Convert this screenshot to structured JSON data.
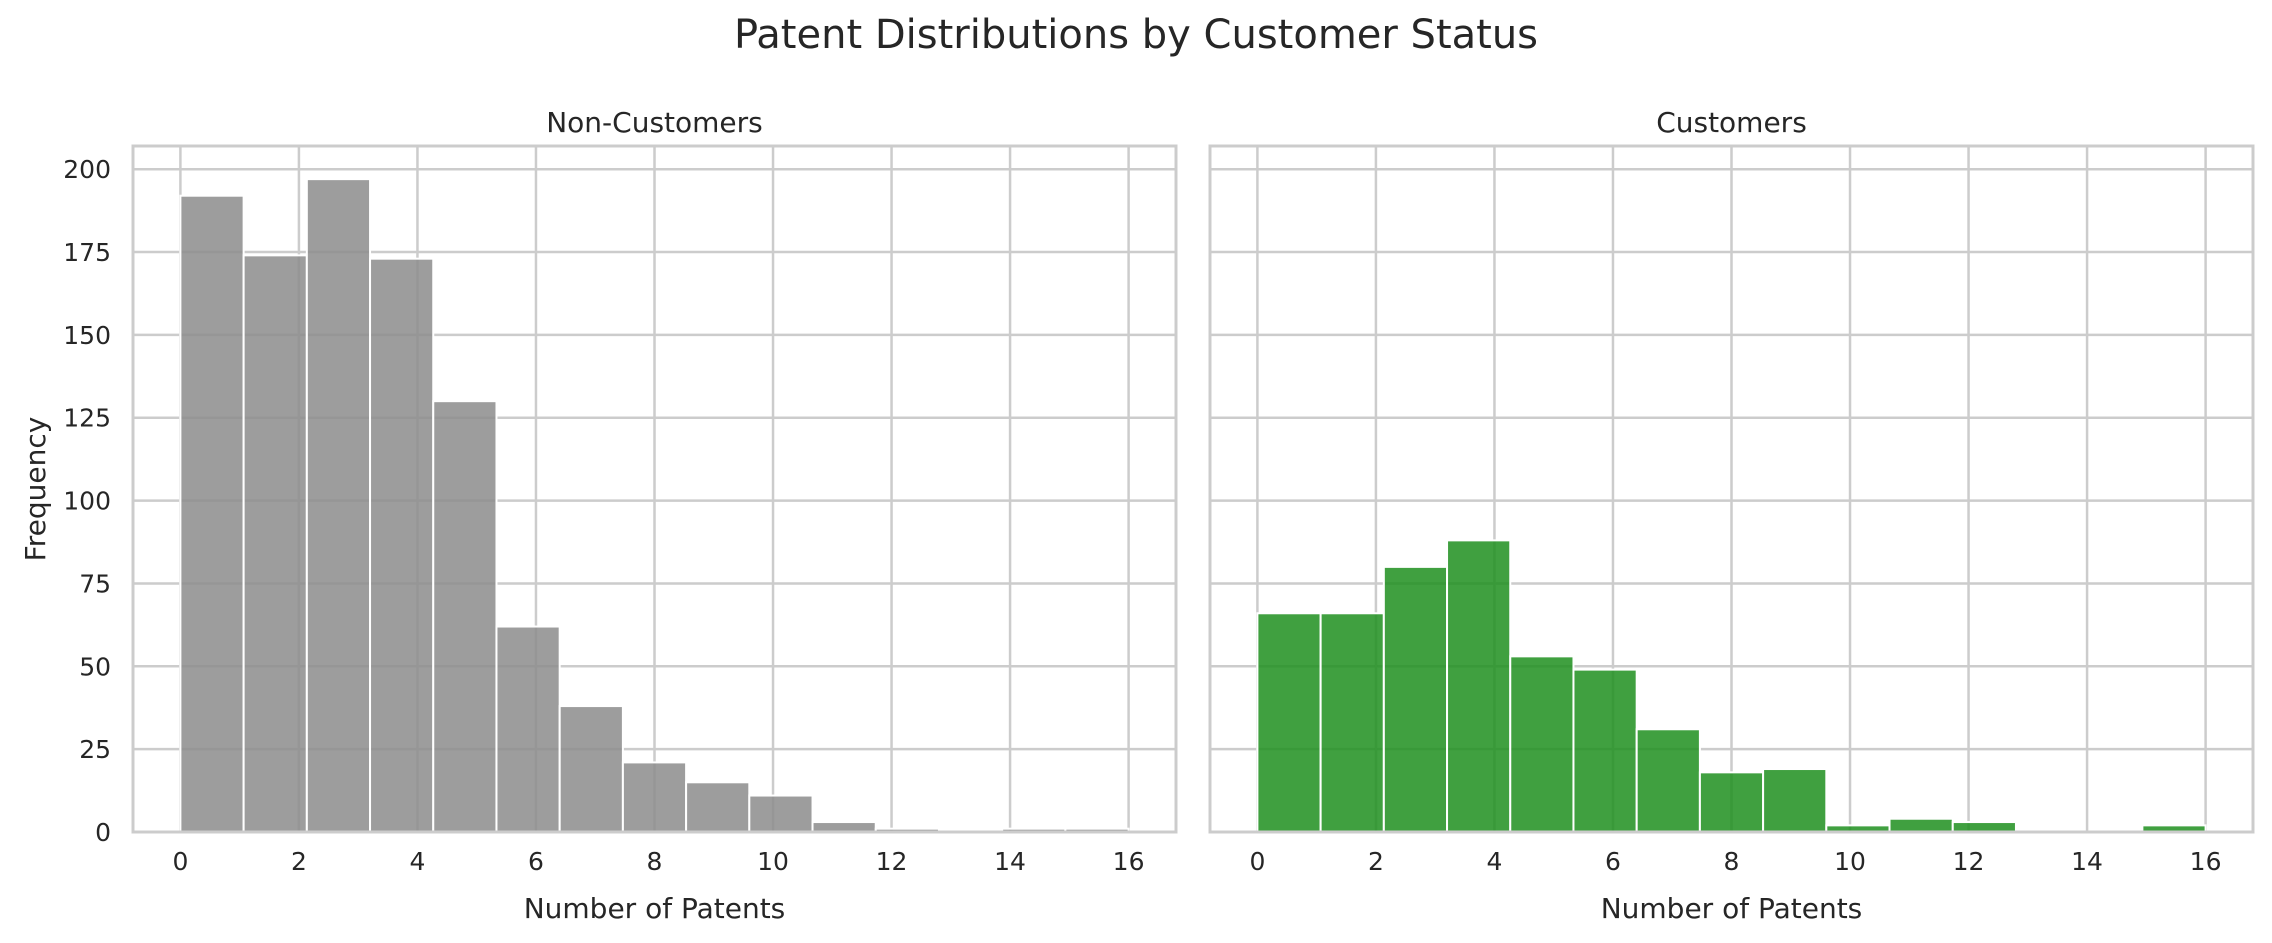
{
  "figure_title": "Patent Distributions by Customer Status",
  "colors": {
    "non_customers": "#8c8c8c",
    "customers": "#1f8f1f",
    "grid": "#cccccc",
    "axes_edge": "#cccccc"
  },
  "chart_data": [
    {
      "type": "bar",
      "title": "Non-Customers",
      "xlabel": "Number of Patents",
      "ylabel": "Frequency",
      "bin_width": 1.0667,
      "bin_starts": [
        0,
        1.0667,
        2.1333,
        3.2,
        4.2667,
        5.3333,
        6.4,
        7.4667,
        8.5333,
        9.6,
        10.6667,
        11.7333,
        12.8,
        13.8667,
        14.9333
      ],
      "values": [
        192,
        174,
        197,
        173,
        130,
        62,
        38,
        21,
        15,
        11,
        3,
        1,
        0,
        1,
        1
      ],
      "xlim": [
        -0.8,
        16.8
      ],
      "ylim": [
        0,
        207
      ],
      "xticks": [
        0,
        2,
        4,
        6,
        8,
        10,
        12,
        14,
        16
      ],
      "yticks": [
        0,
        25,
        50,
        75,
        100,
        125,
        150,
        175,
        200
      ],
      "grid": true,
      "color_key": "non_customers"
    },
    {
      "type": "bar",
      "title": "Customers",
      "xlabel": "Number of Patents",
      "ylabel": "",
      "bin_width": 1.0667,
      "bin_starts": [
        0,
        1.0667,
        2.1333,
        3.2,
        4.2667,
        5.3333,
        6.4,
        7.4667,
        8.5333,
        9.6,
        10.6667,
        11.7333,
        12.8,
        13.8667,
        14.9333
      ],
      "values": [
        66,
        66,
        80,
        88,
        53,
        49,
        31,
        18,
        19,
        2,
        4,
        3,
        0,
        0,
        2
      ],
      "xlim": [
        -0.8,
        16.8
      ],
      "ylim": [
        0,
        207
      ],
      "xticks": [
        0,
        2,
        4,
        6,
        8,
        10,
        12,
        14,
        16
      ],
      "yticks": [
        0,
        25,
        50,
        75,
        100,
        125,
        150,
        175,
        200
      ],
      "grid": true,
      "color_key": "customers"
    }
  ]
}
